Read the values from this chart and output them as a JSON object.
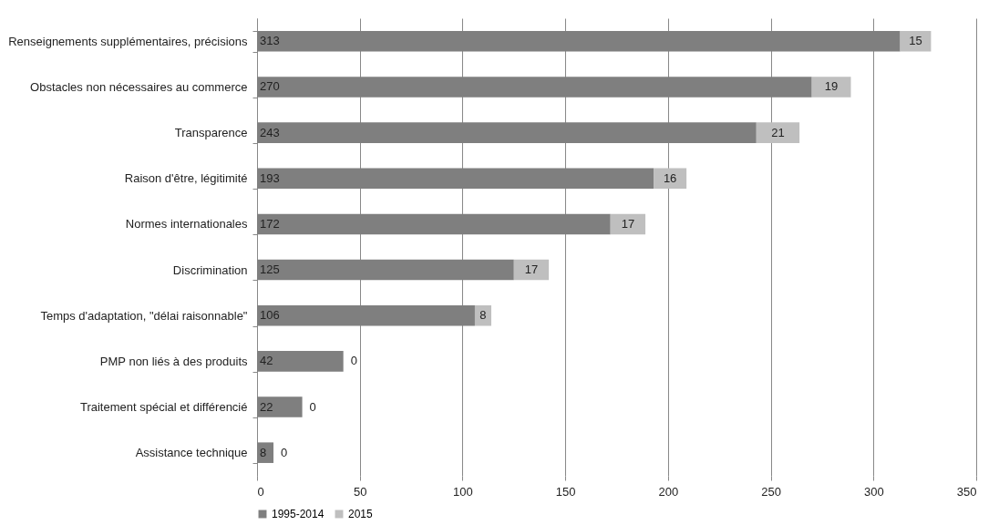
{
  "chart_data": {
    "type": "bar",
    "orientation": "horizontal",
    "stacked": true,
    "categories": [
      "Renseignements supplémentaires, précisions",
      "Obstacles non nécessaires au commerce",
      "Transparence",
      "Raison d'être, légitimité",
      "Normes internationales",
      "Discrimination",
      "Temps d'adaptation, \"délai raisonnable\"",
      "PMP non liés à des produits",
      "Traitement spécial et différencié",
      "Assistance technique"
    ],
    "series": [
      {
        "name": "1995-2014",
        "color": "#7f7f7f",
        "values": [
          313,
          270,
          243,
          193,
          172,
          125,
          106,
          42,
          22,
          8
        ]
      },
      {
        "name": "2015",
        "color": "#bfbfbf",
        "values": [
          15,
          19,
          21,
          16,
          17,
          17,
          8,
          0,
          0,
          0
        ]
      }
    ],
    "xlim": [
      0,
      350
    ],
    "xticks": [
      0,
      50,
      100,
      150,
      200,
      250,
      300,
      350
    ],
    "grid": "x",
    "legend": "bottom",
    "data_labels": true
  }
}
